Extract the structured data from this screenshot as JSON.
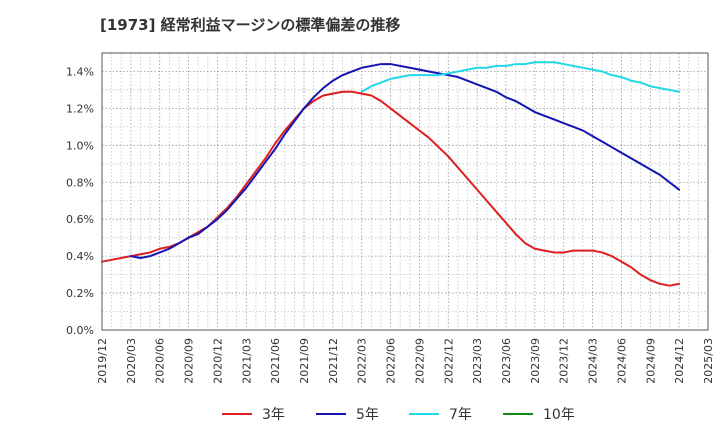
{
  "chart_data": {
    "type": "line",
    "title": "[1973]  経常利益マージンの標準偏差の推移",
    "xlabel": "",
    "ylabel": "",
    "x_ticks": [
      "2019/12",
      "2020/03",
      "2020/06",
      "2020/09",
      "2020/12",
      "2021/03",
      "2021/06",
      "2021/09",
      "2021/12",
      "2022/03",
      "2022/06",
      "2022/09",
      "2022/12",
      "2023/03",
      "2023/06",
      "2023/09",
      "2023/12",
      "2024/03",
      "2024/06",
      "2024/09",
      "2024/12",
      "2025/03"
    ],
    "y_ticks": [
      "0.0%",
      "0.2%",
      "0.4%",
      "0.6%",
      "0.8%",
      "1.0%",
      "1.2%",
      "1.4%"
    ],
    "ylim": [
      0,
      1.5
    ],
    "grid": true,
    "legend_position": "bottom",
    "series": [
      {
        "name": "3年",
        "color": "#dd1f1f",
        "points": [
          [
            "2019/12",
            0.37
          ],
          [
            "2020/01",
            0.38
          ],
          [
            "2020/02",
            0.39
          ],
          [
            "2020/03",
            0.4
          ],
          [
            "2020/04",
            0.41
          ],
          [
            "2020/05",
            0.42
          ],
          [
            "2020/06",
            0.44
          ],
          [
            "2020/07",
            0.45
          ],
          [
            "2020/08",
            0.47
          ],
          [
            "2020/09",
            0.5
          ],
          [
            "2020/10",
            0.53
          ],
          [
            "2020/11",
            0.56
          ],
          [
            "2020/12",
            0.61
          ],
          [
            "2021/01",
            0.66
          ],
          [
            "2021/02",
            0.72
          ],
          [
            "2021/03",
            0.79
          ],
          [
            "2021/04",
            0.86
          ],
          [
            "2021/05",
            0.93
          ],
          [
            "2021/06",
            1.01
          ],
          [
            "2021/07",
            1.08
          ],
          [
            "2021/08",
            1.14
          ],
          [
            "2021/09",
            1.2
          ],
          [
            "2021/10",
            1.24
          ],
          [
            "2021/11",
            1.27
          ],
          [
            "2021/12",
            1.28
          ],
          [
            "2022/01",
            1.29
          ],
          [
            "2022/02",
            1.29
          ],
          [
            "2022/03",
            1.28
          ],
          [
            "2022/04",
            1.27
          ],
          [
            "2022/05",
            1.24
          ],
          [
            "2022/06",
            1.2
          ],
          [
            "2022/07",
            1.16
          ],
          [
            "2022/08",
            1.12
          ],
          [
            "2022/09",
            1.08
          ],
          [
            "2022/10",
            1.04
          ],
          [
            "2022/11",
            0.99
          ],
          [
            "2022/12",
            0.94
          ],
          [
            "2023/01",
            0.88
          ],
          [
            "2023/02",
            0.82
          ],
          [
            "2023/03",
            0.76
          ],
          [
            "2023/04",
            0.7
          ],
          [
            "2023/05",
            0.64
          ],
          [
            "2023/06",
            0.58
          ],
          [
            "2023/07",
            0.52
          ],
          [
            "2023/08",
            0.47
          ],
          [
            "2023/09",
            0.44
          ],
          [
            "2023/10",
            0.43
          ],
          [
            "2023/11",
            0.42
          ],
          [
            "2023/12",
            0.42
          ],
          [
            "2024/01",
            0.43
          ],
          [
            "2024/02",
            0.43
          ],
          [
            "2024/03",
            0.43
          ],
          [
            "2024/04",
            0.42
          ],
          [
            "2024/05",
            0.4
          ],
          [
            "2024/06",
            0.37
          ],
          [
            "2024/07",
            0.34
          ],
          [
            "2024/08",
            0.3
          ],
          [
            "2024/09",
            0.27
          ],
          [
            "2024/10",
            0.25
          ],
          [
            "2024/11",
            0.24
          ],
          [
            "2024/12",
            0.25
          ]
        ]
      },
      {
        "name": "5年",
        "color": "#1414b4",
        "points": [
          [
            "2020/03",
            0.4
          ],
          [
            "2020/04",
            0.39
          ],
          [
            "2020/05",
            0.4
          ],
          [
            "2020/06",
            0.42
          ],
          [
            "2020/07",
            0.44
          ],
          [
            "2020/08",
            0.47
          ],
          [
            "2020/09",
            0.5
          ],
          [
            "2020/10",
            0.52
          ],
          [
            "2020/11",
            0.56
          ],
          [
            "2020/12",
            0.6
          ],
          [
            "2021/01",
            0.65
          ],
          [
            "2021/02",
            0.71
          ],
          [
            "2021/03",
            0.77
          ],
          [
            "2021/04",
            0.84
          ],
          [
            "2021/05",
            0.91
          ],
          [
            "2021/06",
            0.98
          ],
          [
            "2021/07",
            1.06
          ],
          [
            "2021/08",
            1.13
          ],
          [
            "2021/09",
            1.2
          ],
          [
            "2021/10",
            1.26
          ],
          [
            "2021/11",
            1.31
          ],
          [
            "2021/12",
            1.35
          ],
          [
            "2022/01",
            1.38
          ],
          [
            "2022/02",
            1.4
          ],
          [
            "2022/03",
            1.42
          ],
          [
            "2022/04",
            1.43
          ],
          [
            "2022/05",
            1.44
          ],
          [
            "2022/06",
            1.44
          ],
          [
            "2022/07",
            1.43
          ],
          [
            "2022/08",
            1.42
          ],
          [
            "2022/09",
            1.41
          ],
          [
            "2022/10",
            1.4
          ],
          [
            "2022/11",
            1.39
          ],
          [
            "2022/12",
            1.38
          ],
          [
            "2023/01",
            1.37
          ],
          [
            "2023/02",
            1.35
          ],
          [
            "2023/03",
            1.33
          ],
          [
            "2023/04",
            1.31
          ],
          [
            "2023/05",
            1.29
          ],
          [
            "2023/06",
            1.26
          ],
          [
            "2023/07",
            1.24
          ],
          [
            "2023/08",
            1.21
          ],
          [
            "2023/09",
            1.18
          ],
          [
            "2023/10",
            1.16
          ],
          [
            "2023/11",
            1.14
          ],
          [
            "2023/12",
            1.12
          ],
          [
            "2024/01",
            1.1
          ],
          [
            "2024/02",
            1.08
          ],
          [
            "2024/03",
            1.05
          ],
          [
            "2024/04",
            1.02
          ],
          [
            "2024/05",
            0.99
          ],
          [
            "2024/06",
            0.96
          ],
          [
            "2024/07",
            0.93
          ],
          [
            "2024/08",
            0.9
          ],
          [
            "2024/09",
            0.87
          ],
          [
            "2024/10",
            0.84
          ],
          [
            "2024/11",
            0.8
          ],
          [
            "2024/12",
            0.76
          ]
        ]
      },
      {
        "name": "7年",
        "color": "#22d8e8",
        "points": [
          [
            "2022/03",
            1.29
          ],
          [
            "2022/04",
            1.32
          ],
          [
            "2022/05",
            1.34
          ],
          [
            "2022/06",
            1.36
          ],
          [
            "2022/07",
            1.37
          ],
          [
            "2022/08",
            1.38
          ],
          [
            "2022/09",
            1.38
          ],
          [
            "2022/10",
            1.38
          ],
          [
            "2022/11",
            1.38
          ],
          [
            "2022/12",
            1.39
          ],
          [
            "2023/01",
            1.4
          ],
          [
            "2023/02",
            1.41
          ],
          [
            "2023/03",
            1.42
          ],
          [
            "2023/04",
            1.42
          ],
          [
            "2023/05",
            1.43
          ],
          [
            "2023/06",
            1.43
          ],
          [
            "2023/07",
            1.44
          ],
          [
            "2023/08",
            1.44
          ],
          [
            "2023/09",
            1.45
          ],
          [
            "2023/10",
            1.45
          ],
          [
            "2023/11",
            1.45
          ],
          [
            "2023/12",
            1.44
          ],
          [
            "2024/01",
            1.43
          ],
          [
            "2024/02",
            1.42
          ],
          [
            "2024/03",
            1.41
          ],
          [
            "2024/04",
            1.4
          ],
          [
            "2024/05",
            1.38
          ],
          [
            "2024/06",
            1.37
          ],
          [
            "2024/07",
            1.35
          ],
          [
            "2024/08",
            1.34
          ],
          [
            "2024/09",
            1.32
          ],
          [
            "2024/10",
            1.31
          ],
          [
            "2024/11",
            1.3
          ],
          [
            "2024/12",
            1.29
          ]
        ]
      },
      {
        "name": "10年",
        "color": "#138a13",
        "points": []
      }
    ]
  }
}
